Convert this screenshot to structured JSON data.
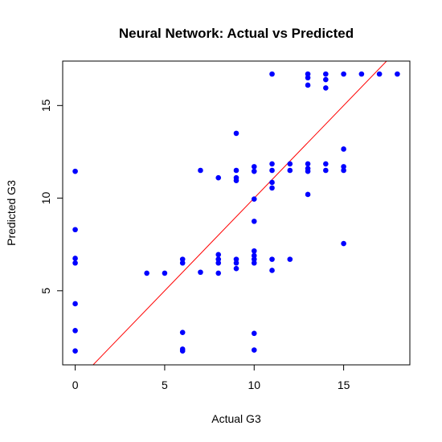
{
  "chart_data": {
    "type": "scatter",
    "title": "Neural Network: Actual vs Predicted",
    "xlabel": "Actual G3",
    "ylabel": "Predicted G3",
    "xlim": [
      -0.7,
      18.7
    ],
    "ylim": [
      1.0,
      17.4
    ],
    "xticks": [
      0,
      5,
      10,
      15
    ],
    "yticks": [
      5,
      10,
      15
    ],
    "grid": false,
    "point_color": "#0000ff",
    "line_color": "#ff0000",
    "reference_line": {
      "intercept": 0,
      "slope": 1
    },
    "points": [
      {
        "x": 0,
        "y": 11.45
      },
      {
        "x": 0,
        "y": 8.3
      },
      {
        "x": 0,
        "y": 6.75
      },
      {
        "x": 0,
        "y": 6.5
      },
      {
        "x": 0,
        "y": 4.3
      },
      {
        "x": 0,
        "y": 2.85
      },
      {
        "x": 0,
        "y": 1.75
      },
      {
        "x": 4,
        "y": 5.95
      },
      {
        "x": 5,
        "y": 5.95
      },
      {
        "x": 6,
        "y": 6.7
      },
      {
        "x": 6,
        "y": 6.5
      },
      {
        "x": 6,
        "y": 2.75
      },
      {
        "x": 6,
        "y": 1.85
      },
      {
        "x": 6,
        "y": 1.75
      },
      {
        "x": 7,
        "y": 11.5
      },
      {
        "x": 7,
        "y": 6.0
      },
      {
        "x": 8,
        "y": 11.1
      },
      {
        "x": 8,
        "y": 6.95
      },
      {
        "x": 8,
        "y": 6.7
      },
      {
        "x": 8,
        "y": 6.5
      },
      {
        "x": 8,
        "y": 5.95
      },
      {
        "x": 9,
        "y": 13.5
      },
      {
        "x": 9,
        "y": 11.5
      },
      {
        "x": 9,
        "y": 11.1
      },
      {
        "x": 9,
        "y": 10.95
      },
      {
        "x": 9,
        "y": 6.7
      },
      {
        "x": 9,
        "y": 6.5
      },
      {
        "x": 9,
        "y": 6.2
      },
      {
        "x": 10,
        "y": 11.7
      },
      {
        "x": 10,
        "y": 11.45
      },
      {
        "x": 10,
        "y": 9.95
      },
      {
        "x": 10,
        "y": 8.75
      },
      {
        "x": 10,
        "y": 7.15
      },
      {
        "x": 10,
        "y": 6.9
      },
      {
        "x": 10,
        "y": 6.7
      },
      {
        "x": 10,
        "y": 6.5
      },
      {
        "x": 10,
        "y": 2.7
      },
      {
        "x": 10,
        "y": 1.8
      },
      {
        "x": 11,
        "y": 16.7
      },
      {
        "x": 11,
        "y": 11.85
      },
      {
        "x": 11,
        "y": 11.5
      },
      {
        "x": 11,
        "y": 10.85
      },
      {
        "x": 11,
        "y": 10.55
      },
      {
        "x": 11,
        "y": 6.7
      },
      {
        "x": 11,
        "y": 6.1
      },
      {
        "x": 12,
        "y": 11.85
      },
      {
        "x": 12,
        "y": 11.5
      },
      {
        "x": 12,
        "y": 6.7
      },
      {
        "x": 13,
        "y": 16.7
      },
      {
        "x": 13,
        "y": 16.5
      },
      {
        "x": 13,
        "y": 16.1
      },
      {
        "x": 13,
        "y": 11.85
      },
      {
        "x": 13,
        "y": 11.6
      },
      {
        "x": 13,
        "y": 11.45
      },
      {
        "x": 13,
        "y": 10.2
      },
      {
        "x": 14,
        "y": 16.7
      },
      {
        "x": 14,
        "y": 16.4
      },
      {
        "x": 14,
        "y": 15.95
      },
      {
        "x": 14,
        "y": 11.85
      },
      {
        "x": 14,
        "y": 11.5
      },
      {
        "x": 15,
        "y": 16.7
      },
      {
        "x": 15,
        "y": 12.65
      },
      {
        "x": 15,
        "y": 11.7
      },
      {
        "x": 15,
        "y": 11.5
      },
      {
        "x": 15,
        "y": 7.55
      },
      {
        "x": 16,
        "y": 16.7
      },
      {
        "x": 17,
        "y": 16.7
      },
      {
        "x": 18,
        "y": 16.7
      }
    ]
  }
}
